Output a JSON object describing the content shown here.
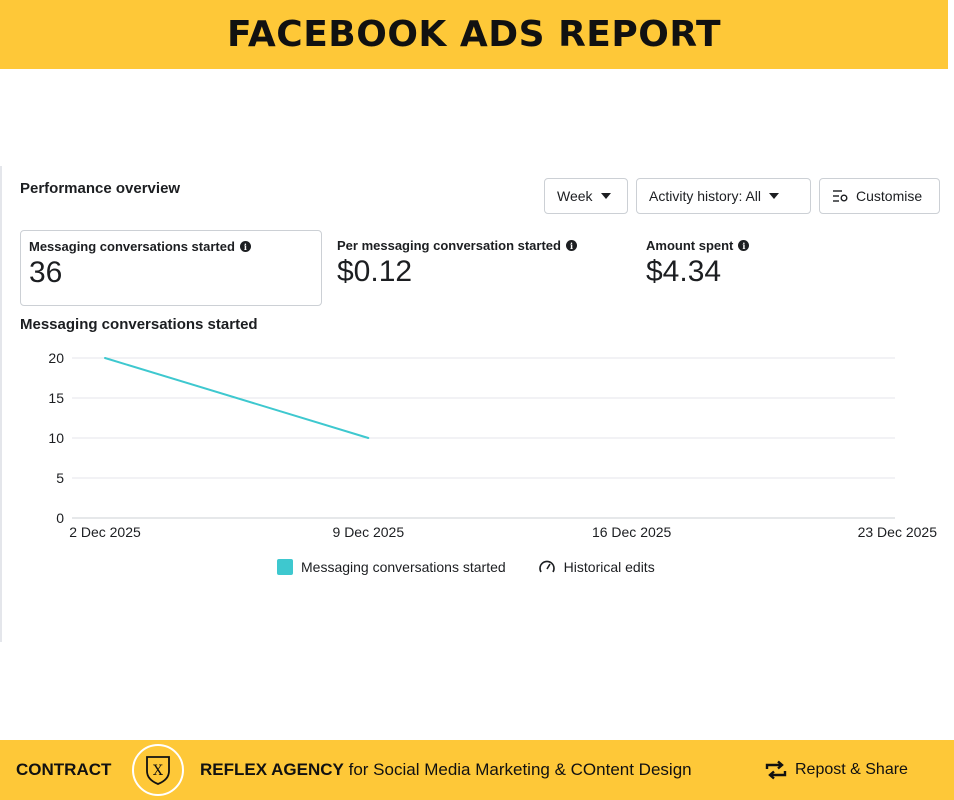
{
  "banner": {
    "title": "FACEBOOK ADS REPORT"
  },
  "panel": {
    "title": "Performance overview",
    "controls": {
      "period": "Week",
      "activity": "Activity history: All",
      "customise": "Customise"
    },
    "metrics": [
      {
        "label": "Messaging conversations started",
        "value": "36"
      },
      {
        "label": "Per messaging conversation started",
        "value": "$0.12"
      },
      {
        "label": "Amount spent",
        "value": "$4.34"
      }
    ],
    "chart_title": "Messaging conversations started"
  },
  "chart_data": {
    "type": "line",
    "x": [
      "2 Dec 2025",
      "9 Dec 2025"
    ],
    "x_ticks": [
      "2 Dec 2025",
      "9 Dec 2025",
      "16 Dec 2025",
      "23 Dec 2025"
    ],
    "y_ticks": [
      0,
      5,
      10,
      15,
      20
    ],
    "ylim": [
      0,
      20
    ],
    "series": [
      {
        "name": "Messaging conversations started",
        "values": [
          20,
          10
        ],
        "color": "#3ec8cf"
      }
    ],
    "grid": true,
    "legend": {
      "position": "bottom",
      "items": [
        "Messaging conversations started",
        "Historical edits"
      ]
    }
  },
  "footer": {
    "contract": "CONTRACT",
    "logo_letter": "X",
    "agency": "REFLEX AGENCY",
    "tagline": " for Social Media Marketing & COntent Design",
    "repost": "Repost & Share"
  },
  "colors": {
    "banner": "#fec838",
    "series": "#3ec8cf",
    "grid": "#e4e6eb"
  }
}
